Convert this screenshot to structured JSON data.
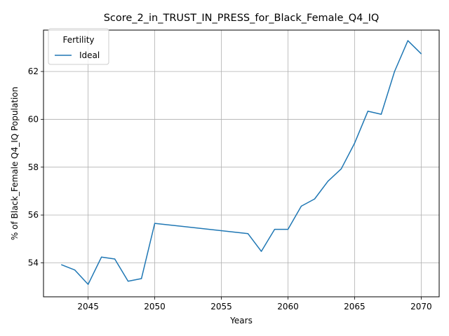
{
  "chart_data": {
    "type": "line",
    "title": "Score_2_in_TRUST_IN_PRESS_for_Black_Female_Q4_IQ",
    "xlabel": "Years",
    "ylabel": "% of Black_Female Q4_IQ Population",
    "xlim": [
      2041.65,
      2071.35
    ],
    "ylim": [
      52.58,
      63.73
    ],
    "xticks": [
      2045,
      2050,
      2055,
      2060,
      2065,
      2070
    ],
    "yticks": [
      54,
      56,
      58,
      60,
      62
    ],
    "grid": true,
    "legend": {
      "title": "Fertility",
      "position": "top-left"
    },
    "series": [
      {
        "name": "Ideal",
        "color": "#1f77b4",
        "x": [
          2043,
          2044,
          2045,
          2046,
          2047,
          2048,
          2049,
          2050,
          2057,
          2058,
          2059,
          2060,
          2061,
          2062,
          2063,
          2064,
          2065,
          2066,
          2067,
          2068,
          2069,
          2070
        ],
        "y": [
          53.92,
          53.7,
          53.1,
          54.24,
          54.16,
          53.23,
          53.34,
          55.65,
          55.22,
          54.48,
          55.4,
          55.4,
          56.37,
          56.67,
          57.41,
          57.93,
          59.0,
          60.34,
          60.21,
          62.0,
          63.29,
          62.74
        ]
      }
    ]
  }
}
